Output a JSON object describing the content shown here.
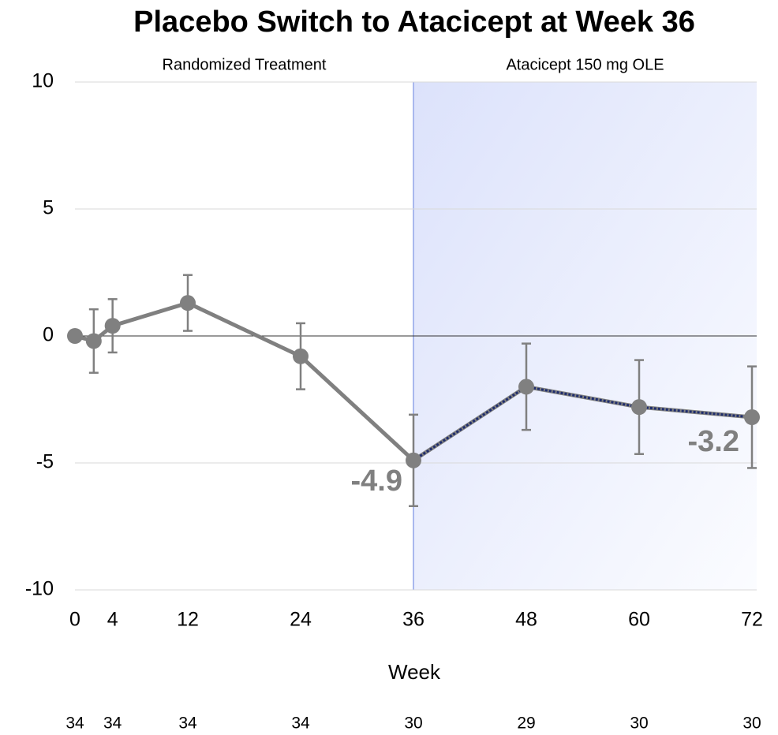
{
  "chart_data": {
    "type": "line",
    "title": "Placebo Switch to Atacicept at Week 36",
    "x_label": "Week",
    "x": [
      0,
      2,
      4,
      12,
      24,
      36,
      48,
      60,
      72
    ],
    "values": [
      0,
      -0.2,
      0.4,
      1.3,
      -0.8,
      -4.9,
      -2.0,
      -2.8,
      -3.2
    ],
    "errors": [
      null,
      1.25,
      1.05,
      1.1,
      1.3,
      1.8,
      1.7,
      1.85,
      2.0
    ],
    "color": "#808080",
    "overlay_color": "#1f2d6e",
    "labeled_x": [
      36,
      72
    ],
    "xlim": [
      0,
      72
    ],
    "xticks": [
      0,
      4,
      12,
      24,
      36,
      48,
      60,
      72
    ],
    "ylim": [
      -10,
      10
    ],
    "yticks": [
      -10,
      -5,
      0,
      5,
      10
    ],
    "grid": true,
    "periods": [
      {
        "label": "Randomized Treatment",
        "xlim": [
          0,
          36
        ],
        "shaded": false
      },
      {
        "label": "Atacicept 150 mg OLE",
        "xlim": [
          36,
          72
        ],
        "shaded": true
      }
    ],
    "n_counts": {
      "x": [
        0,
        4,
        12,
        24,
        36,
        48,
        60,
        72
      ],
      "values": [
        34,
        34,
        34,
        34,
        30,
        29,
        30,
        30
      ]
    }
  }
}
